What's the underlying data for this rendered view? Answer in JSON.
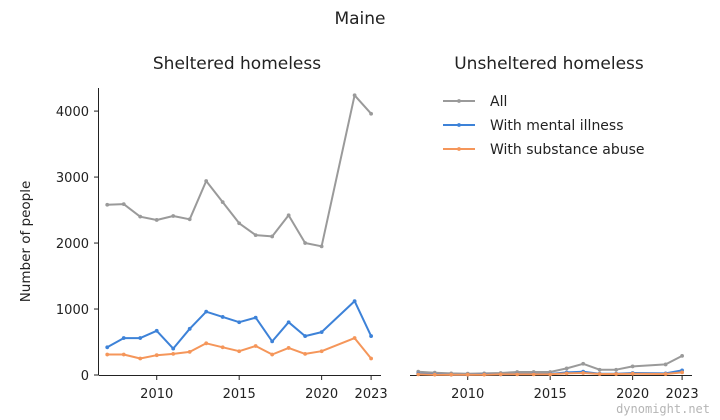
{
  "figure": {
    "title": "Maine",
    "watermark": "dynomight.net"
  },
  "chart_data": [
    {
      "type": "line",
      "title": "Sheltered homeless",
      "xlabel": "",
      "ylabel": "Number of people",
      "xlim": [
        2006.5,
        2023.6
      ],
      "ylim": [
        0,
        4350
      ],
      "xticks": [
        2010,
        2015,
        2020,
        2023
      ],
      "yticks": [
        0,
        1000,
        2000,
        3000,
        4000
      ],
      "grid": false,
      "series": [
        {
          "name": "All",
          "color": "#9a9a9a",
          "x": [
            2007,
            2008,
            2009,
            2010,
            2011,
            2012,
            2013,
            2014,
            2015,
            2016,
            2017,
            2018,
            2019,
            2020,
            2022,
            2023
          ],
          "y": [
            2580,
            2590,
            2400,
            2350,
            2410,
            2360,
            2940,
            2620,
            2300,
            2120,
            2100,
            2420,
            2000,
            1950,
            4240,
            3960
          ]
        },
        {
          "name": "With mental illness",
          "color": "#3d82d8",
          "x": [
            2007,
            2008,
            2009,
            2010,
            2011,
            2012,
            2013,
            2014,
            2015,
            2016,
            2017,
            2018,
            2019,
            2020,
            2022,
            2023
          ],
          "y": [
            420,
            560,
            560,
            670,
            400,
            700,
            960,
            880,
            800,
            870,
            510,
            800,
            590,
            650,
            1120,
            590
          ]
        },
        {
          "name": "With substance abuse",
          "color": "#f5965a",
          "x": [
            2007,
            2008,
            2009,
            2010,
            2011,
            2012,
            2013,
            2014,
            2015,
            2016,
            2017,
            2018,
            2019,
            2020,
            2022,
            2023
          ],
          "y": [
            310,
            310,
            250,
            300,
            320,
            350,
            480,
            420,
            360,
            440,
            310,
            410,
            320,
            360,
            560,
            250
          ]
        }
      ]
    },
    {
      "type": "line",
      "title": "Unsheltered homeless",
      "xlabel": "",
      "ylabel": "",
      "xlim": [
        2006.5,
        2023.6
      ],
      "ylim": [
        0,
        4350
      ],
      "xticks": [
        2010,
        2015,
        2020,
        2023
      ],
      "yticks": [],
      "grid": false,
      "legend": "top-right",
      "series": [
        {
          "name": "All",
          "color": "#9a9a9a",
          "x": [
            2007,
            2008,
            2009,
            2010,
            2011,
            2012,
            2013,
            2014,
            2015,
            2016,
            2017,
            2018,
            2019,
            2020,
            2022,
            2023
          ],
          "y": [
            50,
            35,
            25,
            20,
            25,
            30,
            45,
            45,
            45,
            100,
            170,
            80,
            80,
            130,
            160,
            290
          ]
        },
        {
          "name": "With mental illness",
          "color": "#3d82d8",
          "x": [
            2007,
            2008,
            2009,
            2010,
            2011,
            2012,
            2013,
            2014,
            2015,
            2016,
            2017,
            2018,
            2019,
            2020,
            2022,
            2023
          ],
          "y": [
            20,
            10,
            5,
            5,
            10,
            10,
            15,
            15,
            15,
            40,
            50,
            20,
            20,
            30,
            25,
            70
          ]
        },
        {
          "name": "With substance abuse",
          "color": "#f5965a",
          "x": [
            2007,
            2008,
            2009,
            2010,
            2011,
            2012,
            2013,
            2014,
            2015,
            2016,
            2017,
            2018,
            2019,
            2020,
            2022,
            2023
          ],
          "y": [
            10,
            5,
            5,
            5,
            5,
            10,
            10,
            10,
            10,
            25,
            30,
            15,
            15,
            20,
            15,
            40
          ]
        }
      ]
    }
  ]
}
